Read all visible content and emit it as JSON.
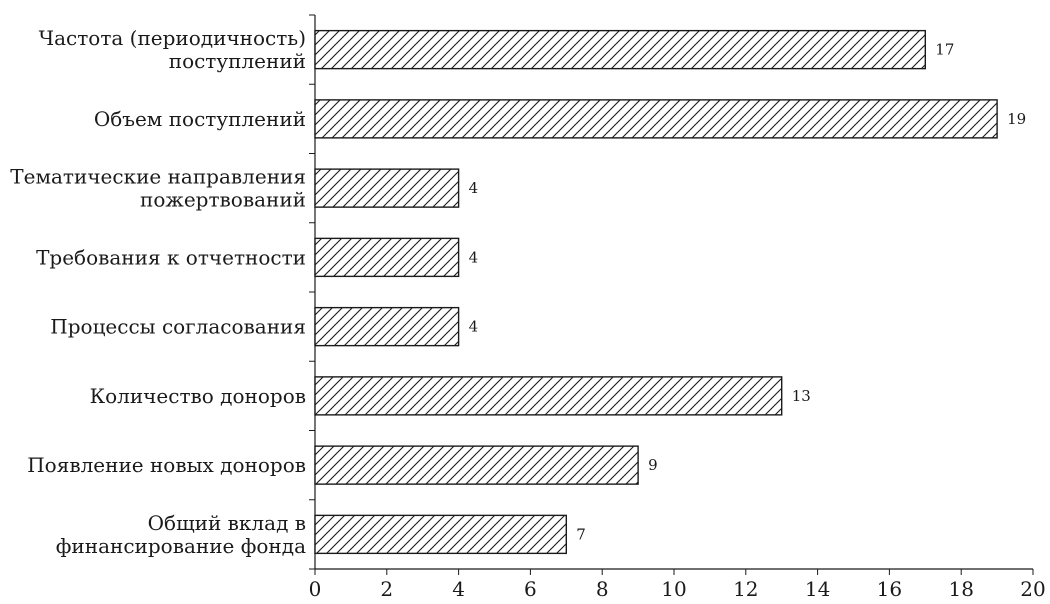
{
  "chart_data": {
    "type": "bar",
    "orientation": "horizontal",
    "categories": [
      [
        "Частота (периодичность)",
        "поступлений"
      ],
      [
        "Объем поступлений"
      ],
      [
        "Тематические направления",
        "пожертвований"
      ],
      [
        "Требования к отчетности"
      ],
      [
        "Процессы согласования"
      ],
      [
        "Количество доноров"
      ],
      [
        "Появление новых доноров"
      ],
      [
        "Общий вклад в",
        "финансирование фонда"
      ]
    ],
    "values": [
      17,
      19,
      4,
      4,
      4,
      13,
      9,
      7
    ],
    "xlim": [
      0,
      20
    ],
    "xticks": [
      0,
      2,
      4,
      6,
      8,
      10,
      12,
      14,
      16,
      18,
      20
    ],
    "title": "",
    "xlabel": "",
    "ylabel": "",
    "grid": false,
    "bar_fill": "hatched",
    "colors": {
      "bar_stroke": "#1a1a1a",
      "hatch": "#1a1a1a",
      "background": "#ffffff"
    }
  }
}
